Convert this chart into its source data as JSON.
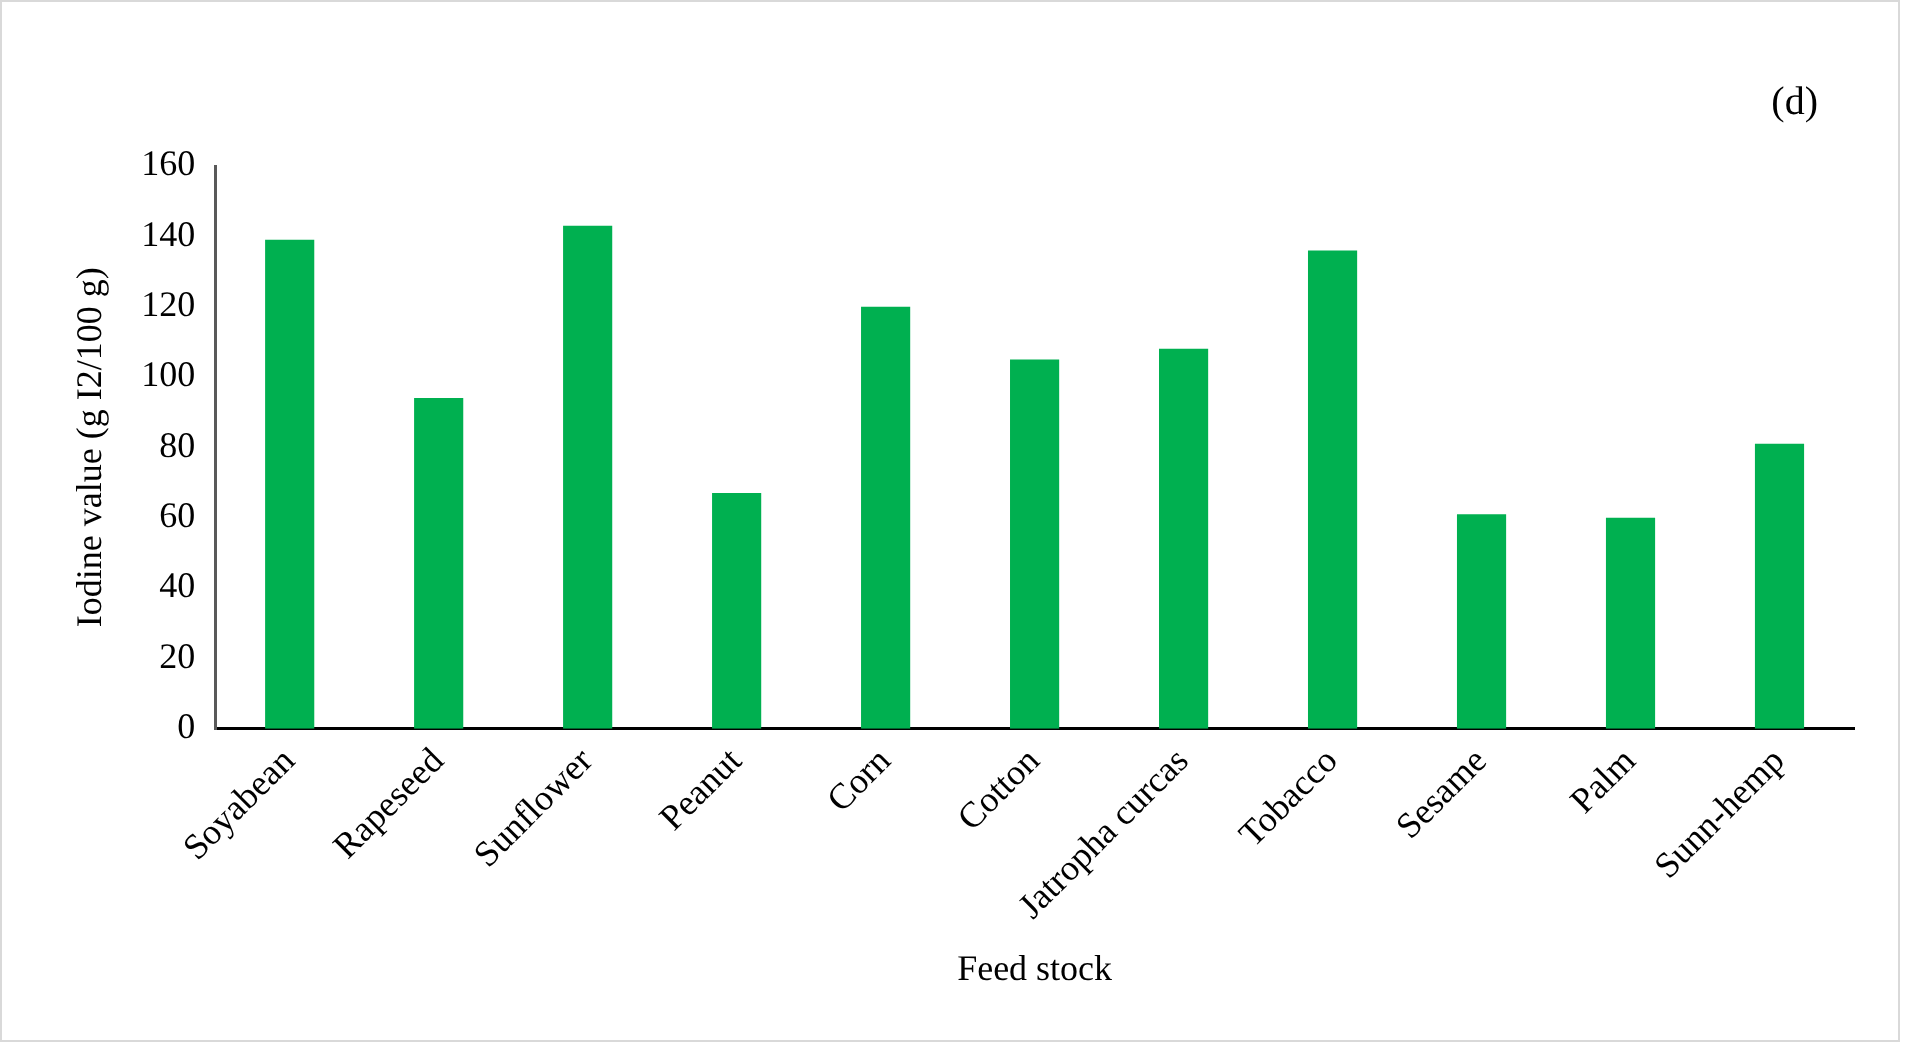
{
  "chart_data": {
    "type": "bar",
    "xlabel": "Feed stock",
    "ylabel": "Iodine value (g I2/100 g)",
    "categories": [
      "Soyabean",
      "Rapeseed",
      "Sunflower",
      "Peanut",
      "Corn",
      "Cotton",
      "Jatropha curcas",
      "Tobacco",
      "Sesame",
      "Palm",
      "Sunn-hemp"
    ],
    "values": [
      139,
      94,
      143,
      67,
      120,
      105,
      108,
      136,
      61,
      60,
      81
    ],
    "color": "#00b050",
    "ylim": [
      0,
      160
    ],
    "yticks": [
      0,
      20,
      40,
      60,
      80,
      100,
      120,
      140,
      160
    ],
    "grid": false,
    "legend": false,
    "annotations": [
      "(d)"
    ]
  }
}
